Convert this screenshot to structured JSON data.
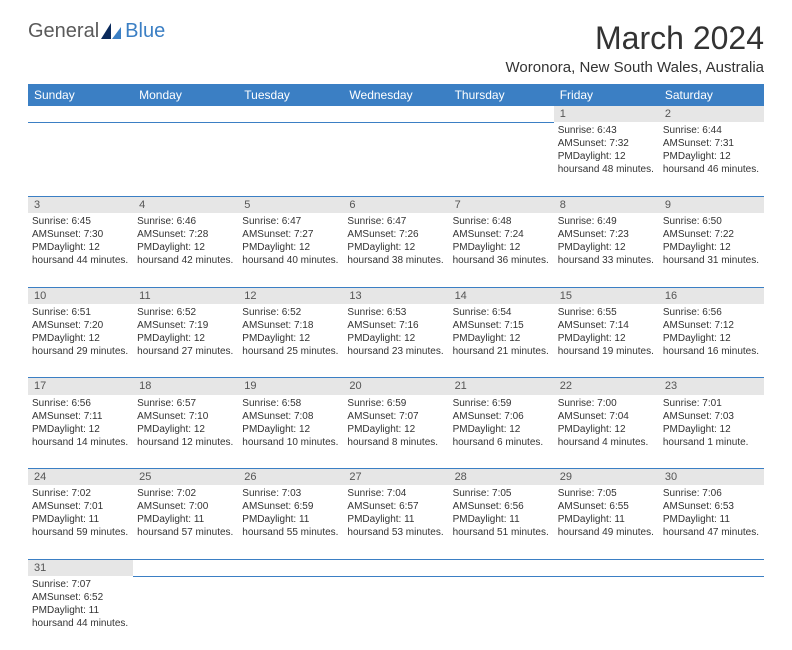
{
  "logo": {
    "text1": "General",
    "text2": "Blue"
  },
  "title": "March 2024",
  "location": "Woronora, New South Wales, Australia",
  "colors": {
    "header_bg": "#3b7fc4",
    "header_fg": "#ffffff",
    "daynum_bg": "#e6e6e6",
    "border": "#3b7fc4"
  },
  "day_headers": [
    "Sunday",
    "Monday",
    "Tuesday",
    "Wednesday",
    "Thursday",
    "Friday",
    "Saturday"
  ],
  "weeks": [
    {
      "nums": [
        "",
        "",
        "",
        "",
        "",
        "1",
        "2"
      ],
      "cells": [
        null,
        null,
        null,
        null,
        null,
        {
          "sr": "Sunrise: 6:43 AM",
          "ss": "Sunset: 7:32 PM",
          "d1": "Daylight: 12 hours",
          "d2": "and 48 minutes."
        },
        {
          "sr": "Sunrise: 6:44 AM",
          "ss": "Sunset: 7:31 PM",
          "d1": "Daylight: 12 hours",
          "d2": "and 46 minutes."
        }
      ]
    },
    {
      "nums": [
        "3",
        "4",
        "5",
        "6",
        "7",
        "8",
        "9"
      ],
      "cells": [
        {
          "sr": "Sunrise: 6:45 AM",
          "ss": "Sunset: 7:30 PM",
          "d1": "Daylight: 12 hours",
          "d2": "and 44 minutes."
        },
        {
          "sr": "Sunrise: 6:46 AM",
          "ss": "Sunset: 7:28 PM",
          "d1": "Daylight: 12 hours",
          "d2": "and 42 minutes."
        },
        {
          "sr": "Sunrise: 6:47 AM",
          "ss": "Sunset: 7:27 PM",
          "d1": "Daylight: 12 hours",
          "d2": "and 40 minutes."
        },
        {
          "sr": "Sunrise: 6:47 AM",
          "ss": "Sunset: 7:26 PM",
          "d1": "Daylight: 12 hours",
          "d2": "and 38 minutes."
        },
        {
          "sr": "Sunrise: 6:48 AM",
          "ss": "Sunset: 7:24 PM",
          "d1": "Daylight: 12 hours",
          "d2": "and 36 minutes."
        },
        {
          "sr": "Sunrise: 6:49 AM",
          "ss": "Sunset: 7:23 PM",
          "d1": "Daylight: 12 hours",
          "d2": "and 33 minutes."
        },
        {
          "sr": "Sunrise: 6:50 AM",
          "ss": "Sunset: 7:22 PM",
          "d1": "Daylight: 12 hours",
          "d2": "and 31 minutes."
        }
      ]
    },
    {
      "nums": [
        "10",
        "11",
        "12",
        "13",
        "14",
        "15",
        "16"
      ],
      "cells": [
        {
          "sr": "Sunrise: 6:51 AM",
          "ss": "Sunset: 7:20 PM",
          "d1": "Daylight: 12 hours",
          "d2": "and 29 minutes."
        },
        {
          "sr": "Sunrise: 6:52 AM",
          "ss": "Sunset: 7:19 PM",
          "d1": "Daylight: 12 hours",
          "d2": "and 27 minutes."
        },
        {
          "sr": "Sunrise: 6:52 AM",
          "ss": "Sunset: 7:18 PM",
          "d1": "Daylight: 12 hours",
          "d2": "and 25 minutes."
        },
        {
          "sr": "Sunrise: 6:53 AM",
          "ss": "Sunset: 7:16 PM",
          "d1": "Daylight: 12 hours",
          "d2": "and 23 minutes."
        },
        {
          "sr": "Sunrise: 6:54 AM",
          "ss": "Sunset: 7:15 PM",
          "d1": "Daylight: 12 hours",
          "d2": "and 21 minutes."
        },
        {
          "sr": "Sunrise: 6:55 AM",
          "ss": "Sunset: 7:14 PM",
          "d1": "Daylight: 12 hours",
          "d2": "and 19 minutes."
        },
        {
          "sr": "Sunrise: 6:56 AM",
          "ss": "Sunset: 7:12 PM",
          "d1": "Daylight: 12 hours",
          "d2": "and 16 minutes."
        }
      ]
    },
    {
      "nums": [
        "17",
        "18",
        "19",
        "20",
        "21",
        "22",
        "23"
      ],
      "cells": [
        {
          "sr": "Sunrise: 6:56 AM",
          "ss": "Sunset: 7:11 PM",
          "d1": "Daylight: 12 hours",
          "d2": "and 14 minutes."
        },
        {
          "sr": "Sunrise: 6:57 AM",
          "ss": "Sunset: 7:10 PM",
          "d1": "Daylight: 12 hours",
          "d2": "and 12 minutes."
        },
        {
          "sr": "Sunrise: 6:58 AM",
          "ss": "Sunset: 7:08 PM",
          "d1": "Daylight: 12 hours",
          "d2": "and 10 minutes."
        },
        {
          "sr": "Sunrise: 6:59 AM",
          "ss": "Sunset: 7:07 PM",
          "d1": "Daylight: 12 hours",
          "d2": "and 8 minutes."
        },
        {
          "sr": "Sunrise: 6:59 AM",
          "ss": "Sunset: 7:06 PM",
          "d1": "Daylight: 12 hours",
          "d2": "and 6 minutes."
        },
        {
          "sr": "Sunrise: 7:00 AM",
          "ss": "Sunset: 7:04 PM",
          "d1": "Daylight: 12 hours",
          "d2": "and 4 minutes."
        },
        {
          "sr": "Sunrise: 7:01 AM",
          "ss": "Sunset: 7:03 PM",
          "d1": "Daylight: 12 hours",
          "d2": "and 1 minute."
        }
      ]
    },
    {
      "nums": [
        "24",
        "25",
        "26",
        "27",
        "28",
        "29",
        "30"
      ],
      "cells": [
        {
          "sr": "Sunrise: 7:02 AM",
          "ss": "Sunset: 7:01 PM",
          "d1": "Daylight: 11 hours",
          "d2": "and 59 minutes."
        },
        {
          "sr": "Sunrise: 7:02 AM",
          "ss": "Sunset: 7:00 PM",
          "d1": "Daylight: 11 hours",
          "d2": "and 57 minutes."
        },
        {
          "sr": "Sunrise: 7:03 AM",
          "ss": "Sunset: 6:59 PM",
          "d1": "Daylight: 11 hours",
          "d2": "and 55 minutes."
        },
        {
          "sr": "Sunrise: 7:04 AM",
          "ss": "Sunset: 6:57 PM",
          "d1": "Daylight: 11 hours",
          "d2": "and 53 minutes."
        },
        {
          "sr": "Sunrise: 7:05 AM",
          "ss": "Sunset: 6:56 PM",
          "d1": "Daylight: 11 hours",
          "d2": "and 51 minutes."
        },
        {
          "sr": "Sunrise: 7:05 AM",
          "ss": "Sunset: 6:55 PM",
          "d1": "Daylight: 11 hours",
          "d2": "and 49 minutes."
        },
        {
          "sr": "Sunrise: 7:06 AM",
          "ss": "Sunset: 6:53 PM",
          "d1": "Daylight: 11 hours",
          "d2": "and 47 minutes."
        }
      ]
    },
    {
      "nums": [
        "31",
        "",
        "",
        "",
        "",
        "",
        ""
      ],
      "cells": [
        {
          "sr": "Sunrise: 7:07 AM",
          "ss": "Sunset: 6:52 PM",
          "d1": "Daylight: 11 hours",
          "d2": "and 44 minutes."
        },
        null,
        null,
        null,
        null,
        null,
        null
      ]
    }
  ]
}
